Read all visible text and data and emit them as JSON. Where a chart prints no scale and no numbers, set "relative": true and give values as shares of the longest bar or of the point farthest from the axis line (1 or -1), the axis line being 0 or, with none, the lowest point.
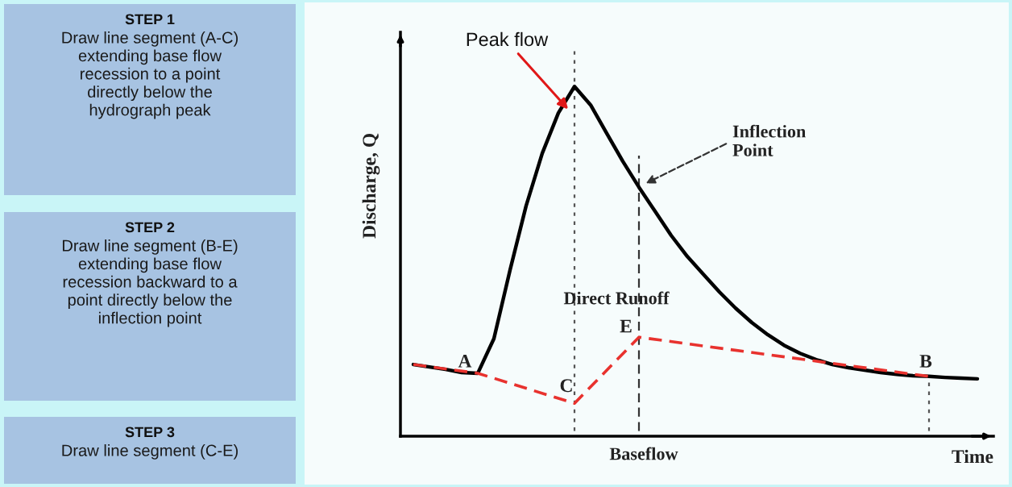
{
  "chart_data": [
    {
      "type": "other",
      "annotations": [
        "STEP 1",
        "Draw line segment (A-C)\nextending base flow\nrecession to a point\ndirectly below the\nhydrograph peak",
        "STEP 2",
        "Draw line segment (B-E)\nextending base flow\nrecession backward to a\npoint directly below the\ninflection point",
        "STEP 3",
        "Draw line segment (C-E)"
      ]
    },
    {
      "type": "line",
      "relative": true,
      "xlabel": "Time",
      "ylabel": "Discharge, Q",
      "categories": [
        null,
        null,
        null,
        null,
        null,
        null,
        null,
        null,
        null,
        null,
        null,
        null,
        null,
        null,
        null,
        null,
        null,
        null,
        null,
        null,
        null,
        null,
        null,
        null,
        null,
        null,
        null,
        null,
        null,
        null,
        null,
        null,
        null,
        null,
        null,
        null
      ],
      "series": [
        {
          "color": "#000000",
          "line_style": "solid",
          "values": [
            0.205,
            0.198,
            0.191,
            0.182,
            0.18,
            0.279,
            0.475,
            0.659,
            0.809,
            0.924,
            1.0,
            0.947,
            0.866,
            0.786,
            0.712,
            0.643,
            0.574,
            0.514,
            0.463,
            0.412,
            0.366,
            0.325,
            0.29,
            0.26,
            0.237,
            0.219,
            0.205,
            0.196,
            0.189,
            0.182,
            0.177,
            0.173,
            0.171,
            0.168,
            0.166,
            0.164
          ]
        },
        {
          "color": "#e8322e",
          "line_style": "dashed",
          "values": [
            0.205,
            null,
            null,
            null,
            0.18,
            null,
            null,
            null,
            null,
            null,
            0.094,
            null,
            null,
            null,
            0.283,
            null,
            null,
            null,
            null,
            null,
            null,
            null,
            null,
            null,
            null,
            null,
            null,
            null,
            null,
            null,
            null,
            null,
            0.171,
            null,
            null,
            null
          ]
        }
      ],
      "annotations": [
        "Peak flow",
        "Inflection\nPoint",
        "Direct Runoff",
        "A",
        "C",
        "E",
        "B",
        "Baseflow"
      ],
      "marker": "none"
    }
  ]
}
